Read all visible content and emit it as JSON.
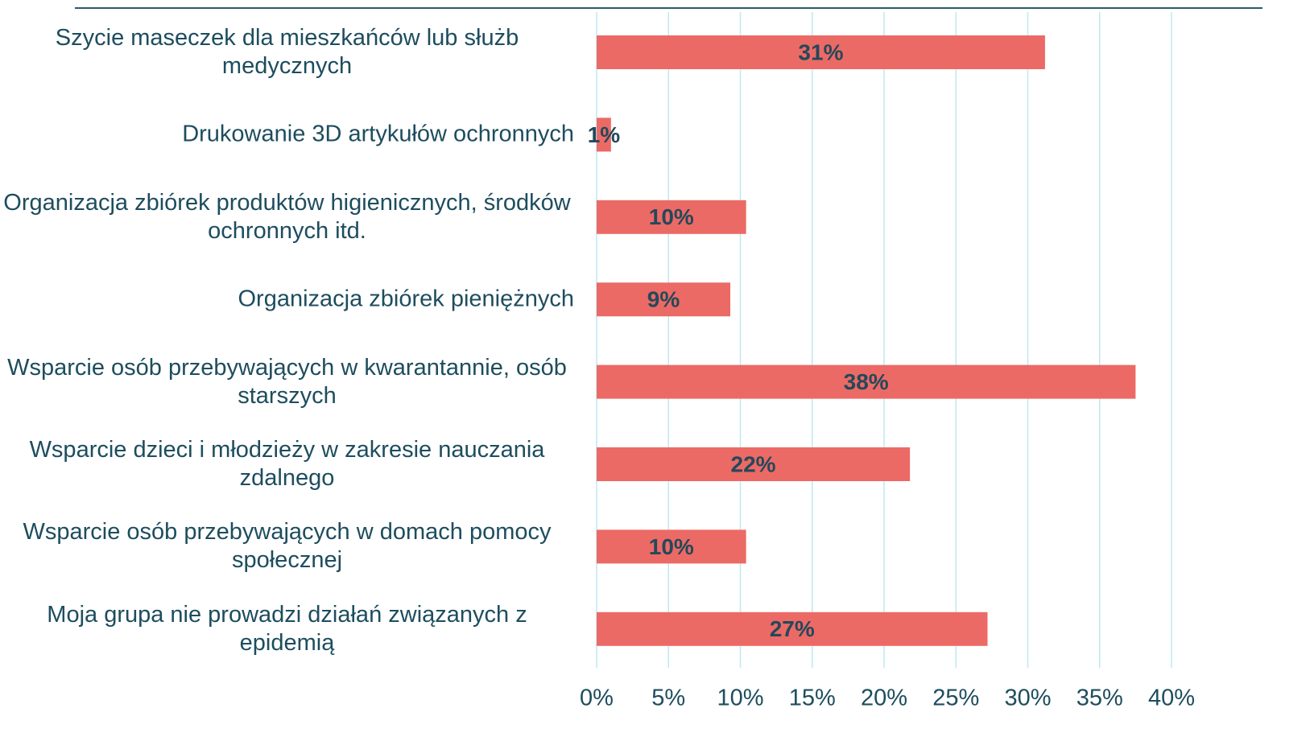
{
  "chart_data": {
    "type": "barh",
    "categories": [
      "Szycie maseczek dla mieszkańców lub służb medycznych",
      "Drukowanie 3D artykułów ochronnych",
      "Organizacja zbiórek produktów higienicznych, środków ochronnych itd.",
      "Organizacja zbiórek pieniężnych",
      "Wsparcie osób przebywających w kwarantannie, osób starszych",
      "Wsparcie dzieci i młodzieży w zakresie nauczania zdalnego",
      "Wsparcie osób przebywających w domach pomocy społecznej",
      "Moja grupa nie prowadzi działań związanych z epidemią"
    ],
    "values": [
      31.2,
      1,
      10.4,
      9.3,
      37.5,
      21.8,
      10.4,
      27.2
    ],
    "value_labels": [
      "31%",
      "1%",
      "10%",
      "9%",
      "38%",
      "22%",
      "10%",
      "27%"
    ],
    "color": "#ec6a65",
    "xlim": [
      0,
      40
    ],
    "xticks": [
      {
        "value": 0,
        "label": "0%"
      },
      {
        "value": 5,
        "label": "5%"
      },
      {
        "value": 10,
        "label": "10%"
      },
      {
        "value": 15,
        "label": "15%"
      },
      {
        "value": 20,
        "label": "20%"
      },
      {
        "value": 25,
        "label": "25%"
      },
      {
        "value": 30,
        "label": "30%"
      },
      {
        "value": 35,
        "label": "35%"
      },
      {
        "value": 40,
        "label": "40%"
      }
    ],
    "grid": true
  }
}
